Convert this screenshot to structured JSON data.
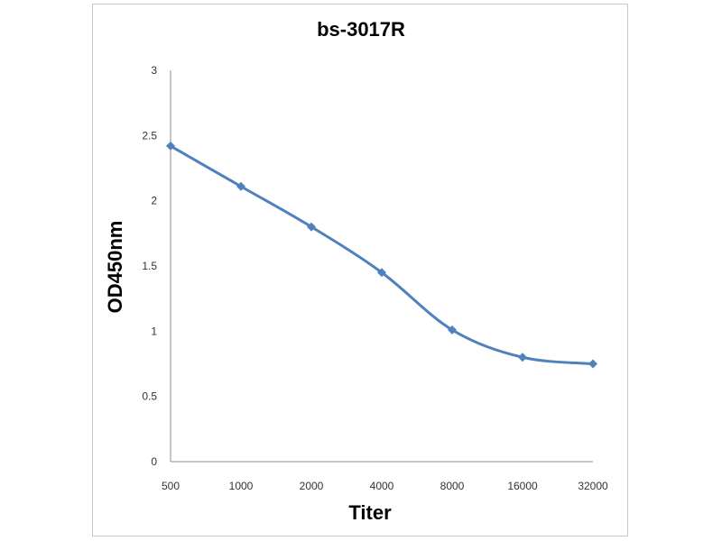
{
  "chart_data": {
    "type": "line",
    "title": "bs-3017R",
    "xlabel": "Titer",
    "ylabel": "OD450nm",
    "categories": [
      "500",
      "1000",
      "2000",
      "4000",
      "8000",
      "16000",
      "32000"
    ],
    "series": [
      {
        "values": [
          2.42,
          2.11,
          1.8,
          1.45,
          1.01,
          0.8,
          0.75
        ]
      }
    ],
    "ylim": [
      0,
      3
    ],
    "yticks": [
      "0",
      "0.5",
      "1",
      "1.5",
      "2",
      "2.5",
      "3"
    ],
    "grid": false,
    "legend": "none",
    "line_color": "#4f81bd",
    "smooth": true
  }
}
